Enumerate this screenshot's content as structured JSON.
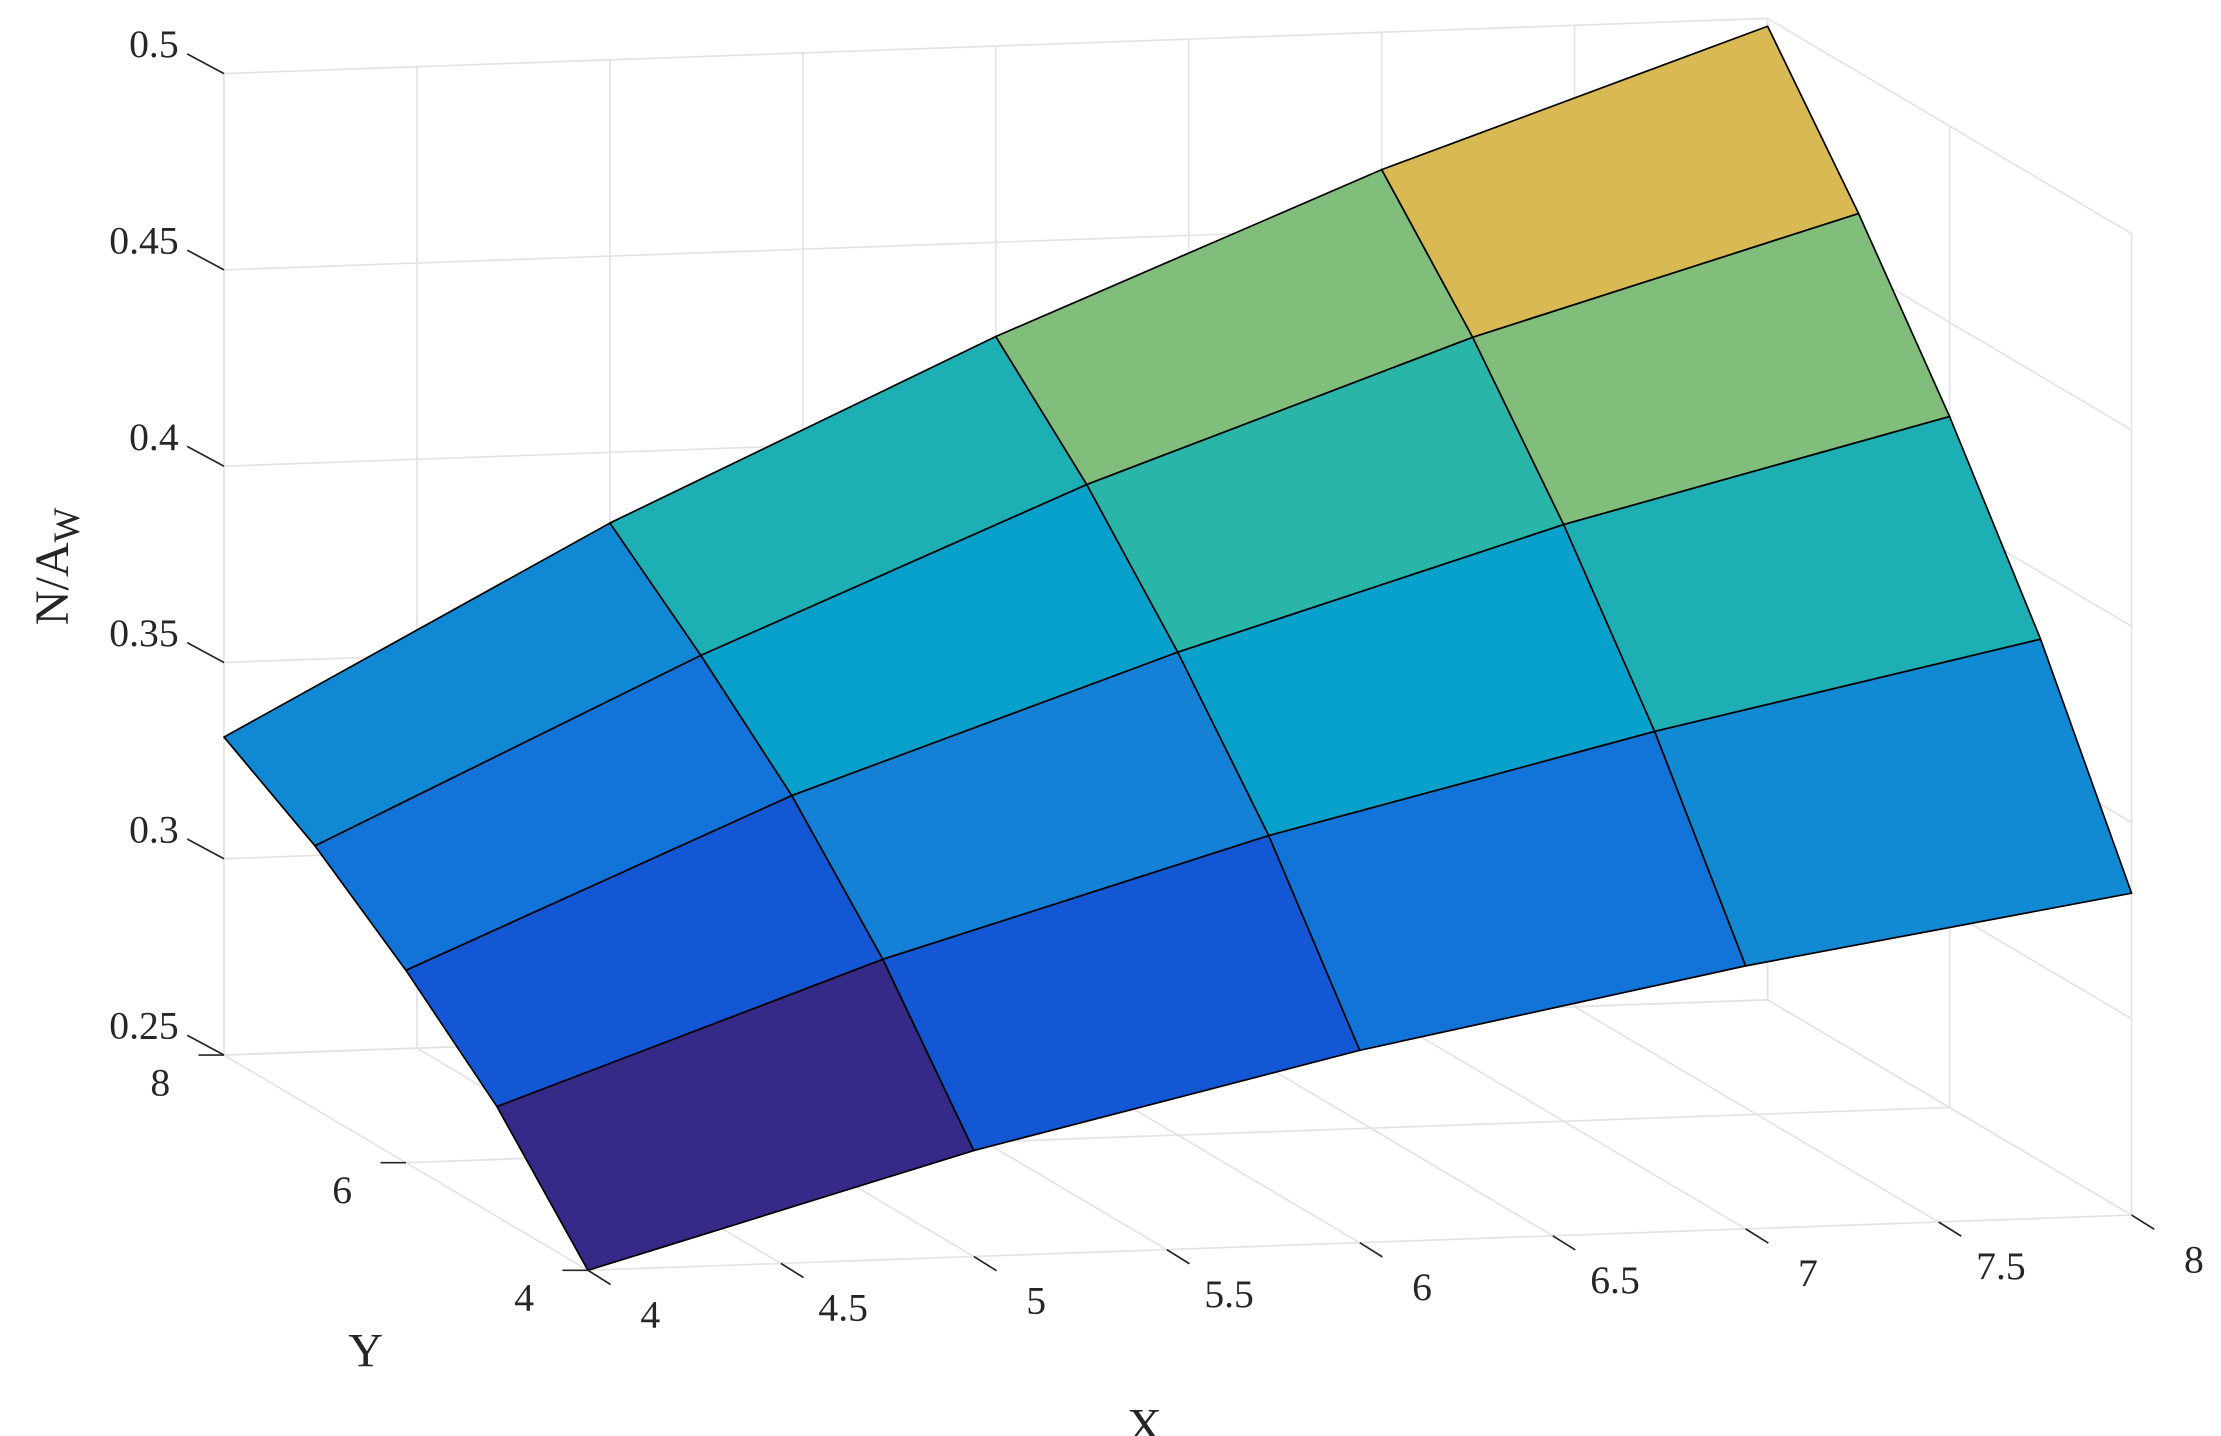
{
  "chart_data": {
    "type": "surface",
    "xlabel": "X",
    "ylabel": "Y",
    "zlabel": "N/A",
    "zlabel_subscript": "W",
    "x": [
      4,
      5,
      6,
      7,
      8
    ],
    "y": [
      4,
      5,
      6,
      7,
      8
    ],
    "z": [
      [
        0.25,
        0.277,
        0.299,
        0.317,
        0.332
      ],
      [
        0.278,
        0.312,
        0.34,
        0.363,
        0.383
      ],
      [
        0.299,
        0.34,
        0.373,
        0.402,
        0.426
      ],
      [
        0.317,
        0.362,
        0.402,
        0.436,
        0.464
      ],
      [
        0.331,
        0.382,
        0.426,
        0.465,
        0.498
      ]
    ],
    "xlim": [
      4,
      8
    ],
    "ylim": [
      4,
      8
    ],
    "zlim": [
      0.25,
      0.5
    ],
    "xticks": [
      4,
      4.5,
      5,
      5.5,
      6,
      6.5,
      7,
      7.5,
      8
    ],
    "yticks": [
      4,
      6,
      8
    ],
    "zticks": [
      0.25,
      0.3,
      0.35,
      0.4,
      0.45,
      0.5
    ],
    "grid": true,
    "colormap": [
      "#352a87",
      "#0f5cdd",
      "#1481d6",
      "#06a4ca",
      "#2ab5a9",
      "#89bf77",
      "#d8b953"
    ],
    "edge_color": "#000000"
  }
}
